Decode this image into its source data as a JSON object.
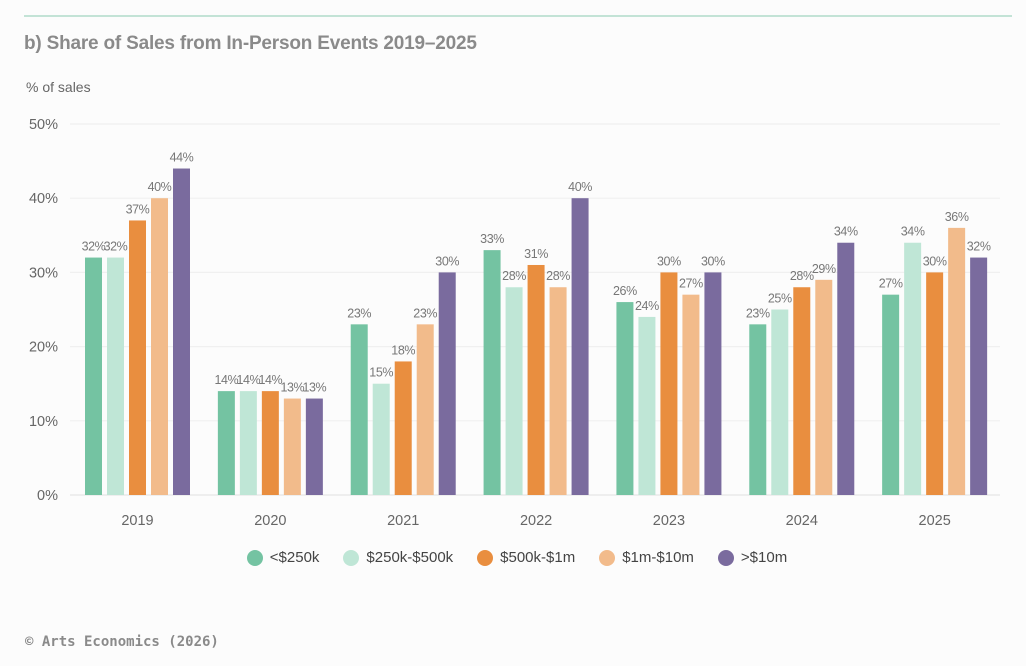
{
  "header": {
    "title": "b) Share of Sales from In-Person Events 2019–2025",
    "y_axis_label": "% of sales"
  },
  "footer": {
    "credit": "© Arts Economics (2026)"
  },
  "chart_data": {
    "type": "bar",
    "title": "b) Share of Sales from In-Person Events 2019–2025",
    "xlabel": "",
    "ylabel": "% of sales",
    "ylim": [
      0,
      50
    ],
    "yticks": [
      0,
      10,
      20,
      30,
      40,
      50
    ],
    "ytick_labels": [
      "0%",
      "10%",
      "20%",
      "30%",
      "40%",
      "50%"
    ],
    "grid": true,
    "legend_position": "bottom-center",
    "categories": [
      "2019",
      "2020",
      "2021",
      "2022",
      "2023",
      "2024",
      "2025"
    ],
    "series": [
      {
        "name": "<$250k",
        "color": "#74c3a2",
        "values": [
          32,
          14,
          23,
          33,
          26,
          23,
          27
        ]
      },
      {
        "name": "$250k-$500k",
        "color": "#bfe6d6",
        "values": [
          32,
          14,
          15,
          28,
          24,
          25,
          34
        ]
      },
      {
        "name": "$500k-$1m",
        "color": "#e98e3f",
        "values": [
          37,
          14,
          18,
          31,
          30,
          28,
          30
        ]
      },
      {
        "name": "$1m-$10m",
        "color": "#f2bb8b",
        "values": [
          40,
          13,
          23,
          28,
          27,
          29,
          36
        ]
      },
      {
        "name": ">$10m",
        "color": "#7a6b9e",
        "values": [
          44,
          13,
          30,
          40,
          30,
          34,
          32
        ]
      }
    ],
    "data_label_suffix": "%"
  }
}
